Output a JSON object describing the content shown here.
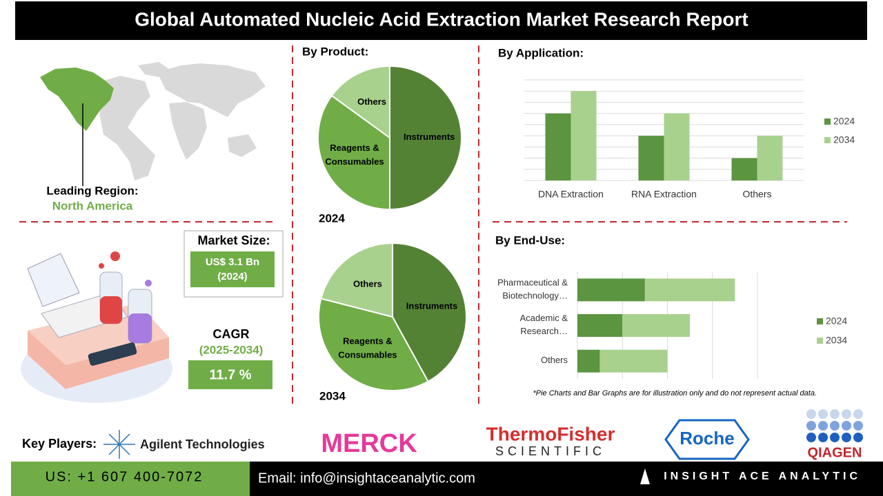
{
  "header": {
    "title": "Global Automated Nucleic Acid Extraction Market Research Report"
  },
  "region": {
    "label": "Leading Region:",
    "value": "North America"
  },
  "market_size": {
    "label": "Market Size:",
    "value": "US$ 3.1 Bn",
    "year": "(2024)"
  },
  "cagr": {
    "label": "CAGR",
    "period": "(2025-2034)",
    "value": "11.7 %"
  },
  "chart_data": [
    {
      "type": "pie",
      "title": "By Product:",
      "subtitle": "2024",
      "categories": [
        "Instruments",
        "Reagents & Consumables",
        "Others"
      ],
      "values": [
        50,
        35,
        15
      ],
      "colors": [
        "#548235",
        "#70ad47",
        "#a9d18e"
      ]
    },
    {
      "type": "pie",
      "subtitle": "2034",
      "categories": [
        "Instruments",
        "Reagents & Consumables",
        "Others"
      ],
      "values": [
        42,
        37,
        21
      ],
      "colors": [
        "#548235",
        "#70ad47",
        "#a9d18e"
      ]
    },
    {
      "type": "bar",
      "title": "By Application:",
      "categories": [
        "DNA Extraction",
        "RNA Extraction",
        "Others"
      ],
      "series": [
        {
          "name": "2024",
          "color": "#5b9540",
          "values": [
            6,
            4,
            2
          ]
        },
        {
          "name": "2034",
          "color": "#a9d18e",
          "values": [
            8,
            6,
            4
          ]
        }
      ],
      "ylim": [
        0,
        9
      ],
      "yticks": [
        0,
        1,
        2,
        3,
        4,
        5,
        6,
        7,
        8,
        9
      ],
      "tick_labels": false,
      "grid": true,
      "legend": "right"
    },
    {
      "type": "stacked-barh",
      "title": "By End-Use:",
      "categories": [
        "Pharmaceutical & Biotechnology…",
        "Academic & Research…",
        "Others"
      ],
      "series": [
        {
          "name": "2024",
          "color": "#5b9540",
          "values": [
            1.5,
            1,
            0.5
          ]
        },
        {
          "name": "2034",
          "color": "#a9d18e",
          "values": [
            2,
            1.5,
            1.5
          ]
        }
      ],
      "xlim": [
        0,
        4
      ],
      "xticks": [
        0,
        1,
        2,
        3,
        4
      ],
      "tick_labels": false,
      "grid": true,
      "legend": "right"
    }
  ],
  "note": "*Pie Charts and Bar Graphs are for illustration only and do not represent actual data.",
  "key_players": {
    "label": "Key Players:",
    "companies": [
      "Agilent Technologies",
      "MERCK",
      "ThermoFisher",
      "SCIENTIFIC",
      "Roche",
      "QIAGEN"
    ]
  },
  "footer": {
    "phone": "US: +1 607 400-7072",
    "email": "Email: info@insightaceanalytic.com",
    "brand": "INSIGHT ACE ANALYTIC"
  }
}
